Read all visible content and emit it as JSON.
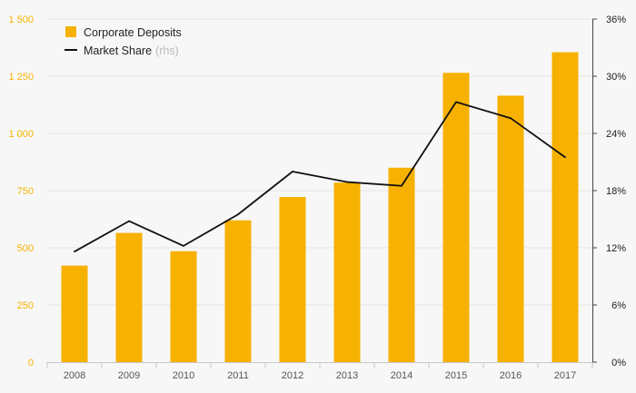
{
  "chart_data": {
    "type": "bar+line",
    "categories": [
      "2008",
      "2009",
      "2010",
      "2011",
      "2012",
      "2013",
      "2014",
      "2015",
      "2016",
      "2017"
    ],
    "series": [
      {
        "name": "Corporate Deposits",
        "type": "bar",
        "axis": "left",
        "color": "#f7b100",
        "values": [
          422,
          565,
          485,
          620,
          722,
          785,
          850,
          1265,
          1165,
          1355
        ]
      },
      {
        "name": "Market Share",
        "name_note": "(rhs)",
        "type": "line",
        "axis": "right",
        "color": "#111111",
        "values": [
          11.6,
          14.8,
          12.2,
          15.5,
          20.0,
          18.9,
          18.5,
          27.3,
          25.6,
          21.5
        ]
      }
    ],
    "y_left": {
      "lim": [
        0,
        1500
      ],
      "ticks": [
        0,
        250,
        500,
        750,
        1000,
        1250,
        1500
      ],
      "tick_labels": [
        "0",
        "250",
        "500",
        "750",
        "1 000",
        "1 250",
        "1 500"
      ]
    },
    "y_right": {
      "lim": [
        0,
        36
      ],
      "ticks": [
        0,
        6,
        12,
        18,
        24,
        30,
        36
      ],
      "tick_labels": [
        "0%",
        "6%",
        "12%",
        "18%",
        "24%",
        "30%",
        "36%"
      ]
    },
    "grid": true,
    "legend": "top-left"
  }
}
